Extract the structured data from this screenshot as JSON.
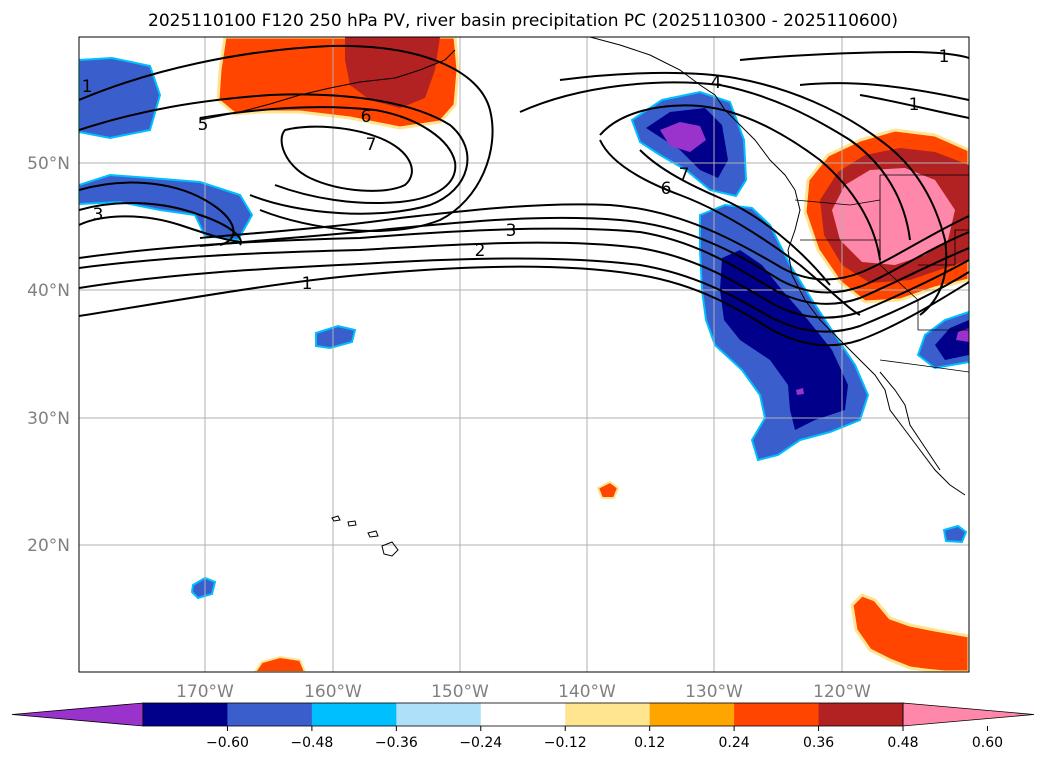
{
  "title": "2025110100 F120 250 hPa PV, river basin precipitation PC (2025110300 - 2025110600)",
  "lat_labels": [
    "50°N",
    "40°N",
    "30°N",
    "20°N"
  ],
  "lon_labels": [
    "170°W",
    "160°W",
    "150°W",
    "140°W",
    "130°W",
    "120°W"
  ],
  "contour_labels": [
    "1",
    "2",
    "3",
    "6",
    "7",
    "4",
    "1",
    "3",
    "5",
    "6",
    "7",
    "1",
    "1"
  ],
  "colorbar": {
    "ticks": [
      "−0.60",
      "−0.48",
      "−0.36",
      "−0.24",
      "−0.12",
      "0.12",
      "0.24",
      "0.36",
      "0.48",
      "0.60"
    ],
    "colors": [
      "#9933cc",
      "#00008b",
      "#3a5fcd",
      "#00bfff",
      "#aee0fa",
      "#ffffff",
      "#ffe58f",
      "#ffa500",
      "#ff4500",
      "#b22222",
      "#ff88aa"
    ]
  }
}
